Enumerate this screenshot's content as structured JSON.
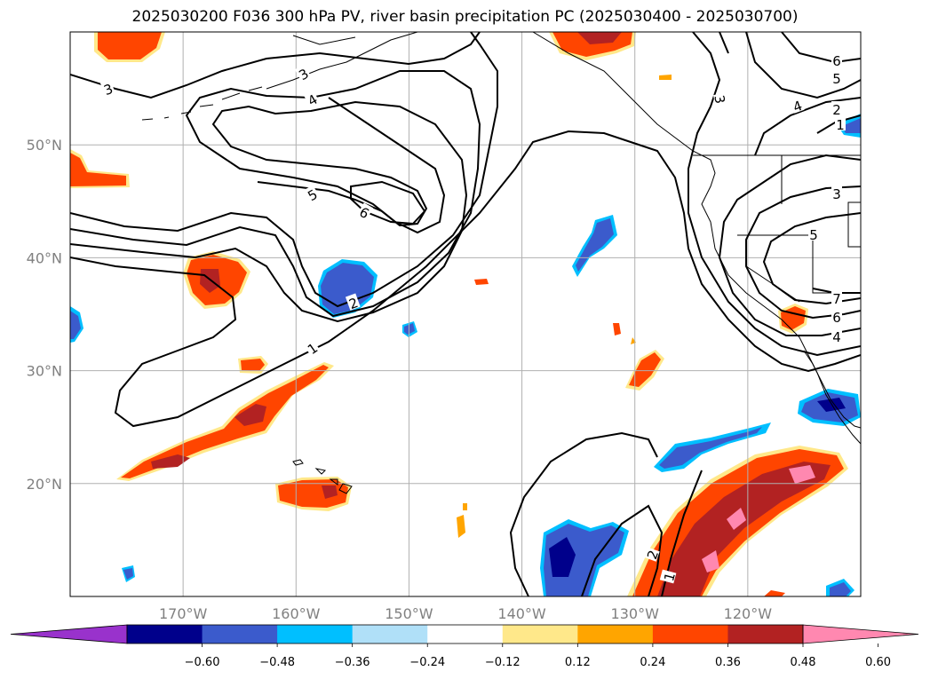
{
  "title": "2025030200 F036 300 hPa PV, river basin precipitation PC (2025030400 - 2025030700)",
  "map": {
    "lon_range": [
      -180,
      -110
    ],
    "lat_range": [
      10,
      60
    ],
    "lon_ticks": [
      {
        "value": -170,
        "label": "170°W"
      },
      {
        "value": -160,
        "label": "160°W"
      },
      {
        "value": -150,
        "label": "150°W"
      },
      {
        "value": -140,
        "label": "140°W"
      },
      {
        "value": -130,
        "label": "130°W"
      },
      {
        "value": -120,
        "label": "120°W"
      }
    ],
    "lat_ticks": [
      {
        "value": 20,
        "label": "20°N"
      },
      {
        "value": 30,
        "label": "30°N"
      },
      {
        "value": 40,
        "label": "40°N"
      },
      {
        "value": 50,
        "label": "50°N"
      }
    ],
    "gridlines": true,
    "coastlines": true
  },
  "contour_labels": [
    "3",
    "3",
    "4",
    "5",
    "6",
    "2",
    "1",
    "6",
    "5",
    "4",
    "2",
    "1",
    "3",
    "5",
    "7",
    "6",
    "4",
    "3",
    "2",
    "1"
  ],
  "colorbar": {
    "labels": [
      "−0.60",
      "−0.48",
      "−0.36",
      "−0.24",
      "−0.12",
      "0.12",
      "0.24",
      "0.36",
      "0.48",
      "0.60"
    ],
    "colors": [
      "#9932cc",
      "#00008b",
      "#3b5bcc",
      "#00bfff",
      "#b0e0f8",
      "#ffffff",
      "#ffe88a",
      "#ffa500",
      "#ff4500",
      "#b22222",
      "#ff88b0"
    ],
    "extend": "both"
  },
  "colors": {
    "neg_strong": "#00008b",
    "neg_mid": "#3b5bcc",
    "neg_light": "#00bfff",
    "pos_yellow": "#ffe88a",
    "pos_orange": "#ffa500",
    "pos_red": "#ff4500",
    "pos_darkred": "#b22222",
    "pos_pink": "#ff88b0"
  }
}
